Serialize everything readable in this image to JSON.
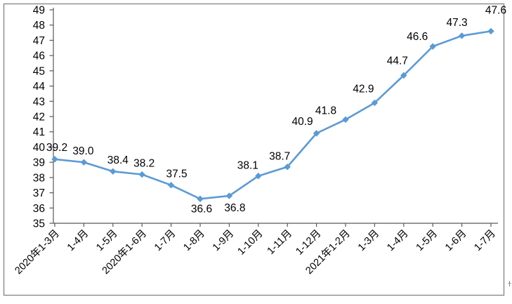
{
  "chart_data": {
    "type": "line",
    "title": "",
    "xlabel": "",
    "ylabel": "",
    "legend": "none",
    "grid": false,
    "categories": [
      "2020年1-3月",
      "1-4月",
      "1-5月",
      "2020年1-6月",
      "1-7月",
      "1-8月",
      "1-9月",
      "1-10月",
      "1-11月",
      "1-12月",
      "2021年1-2月",
      "1-3月",
      "1-4月",
      "1-5月",
      "1-6月",
      "1-7月"
    ],
    "values": [
      39.2,
      39.0,
      38.4,
      38.2,
      37.5,
      36.6,
      36.8,
      38.1,
      38.7,
      40.9,
      41.8,
      42.9,
      44.7,
      46.6,
      47.3,
      47.6
    ],
    "point_labels": [
      "39.2",
      "39.0",
      "38.4",
      "38.2",
      "37.5",
      "36.6",
      "36.8",
      "38.1",
      "38.7",
      "40.9",
      "41.8",
      "42.9",
      "44.7",
      "46.6",
      "47.3",
      "47.6"
    ],
    "y_axis": {
      "min": 35,
      "max": 49,
      "step": 1,
      "tick_labels": [
        "35",
        "36",
        "37",
        "38",
        "39",
        "40",
        "41",
        "42",
        "43",
        "44",
        "45",
        "46",
        "47",
        "48",
        "49"
      ]
    },
    "ylim": [
      35,
      49
    ],
    "marker": "diamond",
    "colors": {
      "line": "#5B9BD5",
      "marker": "#5B9BD5",
      "axis": "#595959",
      "text": "#000000",
      "frame_border": "#898989"
    },
    "layout_hints": {
      "x_labels_rotation_deg": -45,
      "label_dx": [
        3,
        -1,
        7,
        3,
        8,
        2,
        8,
        -15,
        -11,
        -20,
        -28,
        -16,
        -9,
        -22,
        -7,
        7
      ],
      "label_dy": [
        -12,
        -11,
        -11,
        -11,
        -11,
        19,
        22,
        -10,
        -10,
        -12,
        -8,
        -15,
        -16,
        -9,
        -14,
        -25
      ]
    }
  }
}
